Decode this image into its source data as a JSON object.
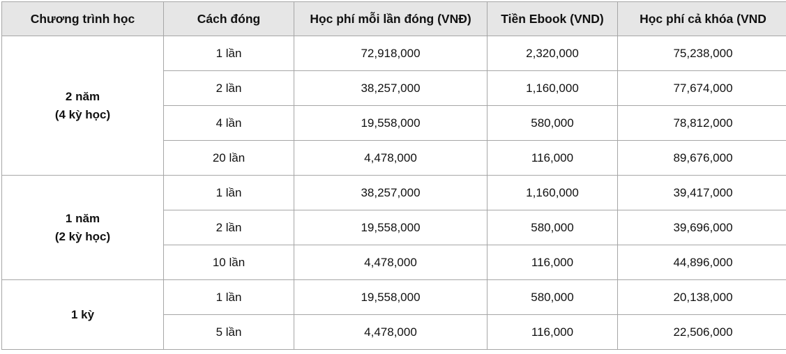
{
  "headers": [
    "Chương trình học",
    "Cách đóng",
    "Học phí mỗi lần đóng (VNĐ)",
    "Tiền Ebook (VND)",
    "Học phí cả khóa (VND"
  ],
  "programs": [
    {
      "lines": [
        "2 năm",
        "(4 kỳ học)"
      ],
      "rows": [
        {
          "payment": "1 lần",
          "per_payment": "72,918,000",
          "ebook": "2,320,000",
          "total": "75,238,000"
        },
        {
          "payment": "2 lần",
          "per_payment": "38,257,000",
          "ebook": "1,160,000",
          "total": "77,674,000"
        },
        {
          "payment": "4 lần",
          "per_payment": "19,558,000",
          "ebook": "580,000",
          "total": "78,812,000"
        },
        {
          "payment": "20 lần",
          "per_payment": "4,478,000",
          "ebook": "116,000",
          "total": "89,676,000"
        }
      ]
    },
    {
      "lines": [
        "1 năm",
        "(2 kỳ học)"
      ],
      "rows": [
        {
          "payment": "1 lần",
          "per_payment": "38,257,000",
          "ebook": "1,160,000",
          "total": "39,417,000"
        },
        {
          "payment": "2 lần",
          "per_payment": "19,558,000",
          "ebook": "580,000",
          "total": "39,696,000"
        },
        {
          "payment": "10 lần",
          "per_payment": "4,478,000",
          "ebook": "116,000",
          "total": "44,896,000"
        }
      ]
    },
    {
      "lines": [
        "1 kỳ"
      ],
      "rows": [
        {
          "payment": "1 lần",
          "per_payment": "19,558,000",
          "ebook": "580,000",
          "total": "20,138,000"
        },
        {
          "payment": "5 lần",
          "per_payment": "4,478,000",
          "ebook": "116,000",
          "total": "22,506,000"
        }
      ]
    }
  ]
}
